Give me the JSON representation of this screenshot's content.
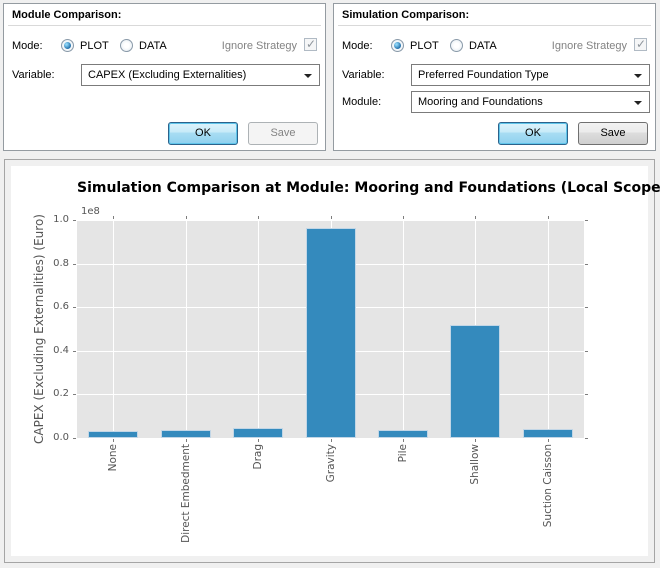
{
  "module_panel": {
    "title": "Module Comparison:",
    "mode_label": "Mode:",
    "mode_options": [
      "PLOT",
      "DATA"
    ],
    "mode_selected": "PLOT",
    "ignore_strategy_label": "Ignore Strategy",
    "ignore_strategy_checked": true,
    "ignore_strategy_enabled": false,
    "variable_label": "Variable:",
    "variable_value": "CAPEX (Excluding Externalities)",
    "ok_label": "OK",
    "save_label": "Save",
    "save_enabled": false
  },
  "simulation_panel": {
    "title": "Simulation Comparison:",
    "mode_label": "Mode:",
    "mode_options": [
      "PLOT",
      "DATA"
    ],
    "mode_selected": "PLOT",
    "ignore_strategy_label": "Ignore Strategy",
    "ignore_strategy_checked": true,
    "ignore_strategy_enabled": false,
    "variable_label": "Variable:",
    "variable_value": "Preferred Foundation Type",
    "module_label": "Module:",
    "module_value": "Mooring and Foundations",
    "ok_label": "OK",
    "save_label": "Save",
    "save_enabled": true
  },
  "chart_data": {
    "type": "bar",
    "title": "Simulation Comparison at Module: Mooring and Foundations (Local Scope)",
    "categories": [
      "None",
      "Direct Embedment",
      "Drag",
      "Gravity",
      "Pile",
      "Shallow",
      "Suction Caisson"
    ],
    "values": [
      3000000,
      3700000,
      4600000,
      96500000,
      3500000,
      52000000,
      4000000
    ],
    "xlabel": "",
    "ylabel": "CAPEX (Excluding Externalities) (Euro)",
    "ylim": [
      0,
      100000000
    ],
    "yticks": [
      0.0,
      0.2,
      0.4,
      0.6,
      0.8,
      1.0
    ],
    "offset_text": "1e8",
    "legend": "none",
    "grid": true,
    "grid_color": "#ffffff",
    "plot_bg": "#e5e5e5",
    "bar_color": "#348abd",
    "tick_color": "#555555"
  }
}
